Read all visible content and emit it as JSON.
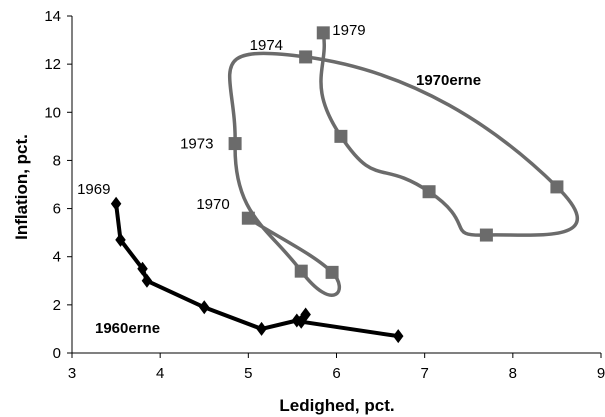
{
  "chart_data": {
    "type": "scatter",
    "title": "",
    "xlabel": "Ledighed, pct.",
    "ylabel": "Inflation, pct.",
    "xlim": [
      3,
      9
    ],
    "ylim": [
      0,
      14
    ],
    "xticks": [
      "3",
      "4",
      "5",
      "6",
      "7",
      "8",
      "9"
    ],
    "yticks": [
      "0",
      "2",
      "4",
      "6",
      "8",
      "10",
      "12",
      "14"
    ],
    "grid": false,
    "legend": "none",
    "series": [
      {
        "name": "1960erne",
        "color": "#000000",
        "marker": "diamond",
        "smooth": false,
        "points": [
          {
            "x": 3.5,
            "y": 6.2,
            "label": "1969"
          },
          {
            "x": 3.55,
            "y": 4.7,
            "label": ""
          },
          {
            "x": 3.8,
            "y": 3.5,
            "label": ""
          },
          {
            "x": 3.85,
            "y": 3.0,
            "label": ""
          },
          {
            "x": 4.5,
            "y": 1.9,
            "label": ""
          },
          {
            "x": 5.15,
            "y": 1.0,
            "label": ""
          },
          {
            "x": 5.55,
            "y": 1.35,
            "label": ""
          },
          {
            "x": 5.65,
            "y": 1.6,
            "label": ""
          },
          {
            "x": 5.6,
            "y": 1.3,
            "label": ""
          },
          {
            "x": 6.7,
            "y": 0.7,
            "label": ""
          }
        ]
      },
      {
        "name": "1970erne",
        "color": "#6b6b6b",
        "marker": "square",
        "smooth": true,
        "points": [
          {
            "x": 5.0,
            "y": 5.6,
            "label": "1970"
          },
          {
            "x": 5.95,
            "y": 3.35,
            "label": ""
          },
          {
            "x": 5.6,
            "y": 3.4,
            "label": ""
          },
          {
            "x": 4.85,
            "y": 8.7,
            "label": "1973"
          },
          {
            "x": 5.65,
            "y": 12.3,
            "label": "1974"
          },
          {
            "x": 8.5,
            "y": 6.9,
            "label": ""
          },
          {
            "x": 7.7,
            "y": 4.9,
            "label": ""
          },
          {
            "x": 7.05,
            "y": 6.7,
            "label": ""
          },
          {
            "x": 6.05,
            "y": 9.0,
            "label": ""
          },
          {
            "x": 5.85,
            "y": 13.3,
            "label": "1979"
          }
        ]
      }
    ]
  }
}
